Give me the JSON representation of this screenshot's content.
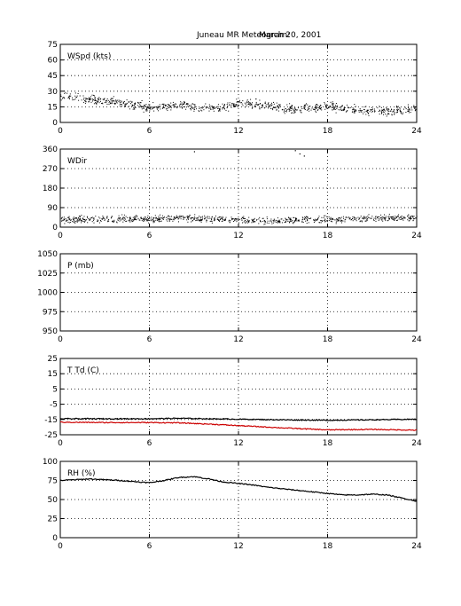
{
  "figure": {
    "title": "Juneau MR Meteogram:",
    "date": "March 20, 2001"
  },
  "chart_data": [
    {
      "type": "scatter",
      "panel_label": "WSpd (kts)",
      "xlim": [
        0,
        24
      ],
      "ylim": [
        0,
        75
      ],
      "xticks": [
        0,
        6,
        12,
        18,
        24
      ],
      "yticks": [
        0,
        15,
        30,
        45,
        60,
        75
      ],
      "grid": true,
      "series": [
        {
          "color": "#000000",
          "x": [
            0,
            1,
            2,
            3,
            4,
            5,
            6,
            7,
            8,
            9,
            10,
            11,
            12,
            13,
            14,
            15,
            16,
            17,
            18,
            19,
            20,
            21,
            22,
            23,
            24
          ],
          "y": [
            26,
            25,
            23,
            21,
            20,
            17,
            15,
            16,
            17,
            15,
            14,
            15,
            19,
            18,
            17,
            14,
            13,
            15,
            16,
            14,
            12,
            12,
            11,
            12,
            13
          ],
          "spread": 4
        }
      ]
    },
    {
      "type": "scatter",
      "panel_label": "WDir",
      "xlim": [
        0,
        24
      ],
      "ylim": [
        0,
        360
      ],
      "xticks": [
        0,
        6,
        12,
        18,
        24
      ],
      "yticks": [
        0,
        90,
        180,
        270,
        360
      ],
      "grid": true,
      "series": [
        {
          "color": "#000000",
          "x": [
            0,
            2,
            4,
            6,
            8,
            10,
            12,
            14,
            16,
            18,
            20,
            22,
            24
          ],
          "y": [
            35,
            38,
            40,
            38,
            45,
            40,
            35,
            30,
            35,
            35,
            40,
            45,
            45
          ],
          "spread": 15
        }
      ],
      "outliers": {
        "x": [
          9.0,
          15.8,
          16.1,
          16.4
        ],
        "y": [
          350,
          355,
          340,
          330
        ]
      }
    },
    {
      "type": "line",
      "panel_label": "P (mb)",
      "xlim": [
        0,
        24
      ],
      "ylim": [
        950,
        1050
      ],
      "xticks": [
        0,
        6,
        12,
        18,
        24
      ],
      "yticks": [
        950,
        975,
        1000,
        1025,
        1050
      ],
      "grid": true,
      "series": []
    },
    {
      "type": "line",
      "panel_label": "T Td (C)",
      "xlim": [
        0,
        24
      ],
      "ylim": [
        -25,
        25
      ],
      "xticks": [
        0,
        6,
        12,
        18,
        24
      ],
      "yticks": [
        -25,
        -15,
        -5,
        5,
        15,
        25
      ],
      "grid": true,
      "series": [
        {
          "color": "#000000",
          "x": [
            0,
            3,
            6,
            8,
            10,
            12,
            15,
            18,
            21,
            24
          ],
          "y": [
            -14.5,
            -14.5,
            -14.5,
            -14.2,
            -14.5,
            -14.8,
            -15.2,
            -15.5,
            -15.2,
            -14.8
          ]
        },
        {
          "color": "#cc0000",
          "x": [
            0,
            3,
            6,
            8,
            10,
            12,
            15,
            18,
            21,
            24
          ],
          "y": [
            -16.8,
            -17.0,
            -17.0,
            -17.2,
            -18.0,
            -19.0,
            -20.5,
            -21.8,
            -21.5,
            -22.0
          ]
        }
      ]
    },
    {
      "type": "line",
      "panel_label": "RH (%)",
      "xlim": [
        0,
        24
      ],
      "ylim": [
        0,
        100
      ],
      "xticks": [
        0,
        6,
        12,
        18,
        24
      ],
      "yticks": [
        0,
        25,
        50,
        75,
        100
      ],
      "grid": true,
      "series": [
        {
          "color": "#000000",
          "x": [
            0,
            2,
            4,
            6,
            7,
            8,
            9,
            10,
            11,
            12,
            13,
            14,
            15,
            16,
            17,
            18,
            19,
            20,
            21,
            22,
            23,
            24
          ],
          "y": [
            75,
            77,
            75,
            72,
            75,
            79,
            80,
            77,
            73,
            71,
            69,
            66,
            64,
            62,
            60,
            58,
            56,
            56,
            57,
            56,
            52,
            48
          ]
        }
      ]
    }
  ]
}
